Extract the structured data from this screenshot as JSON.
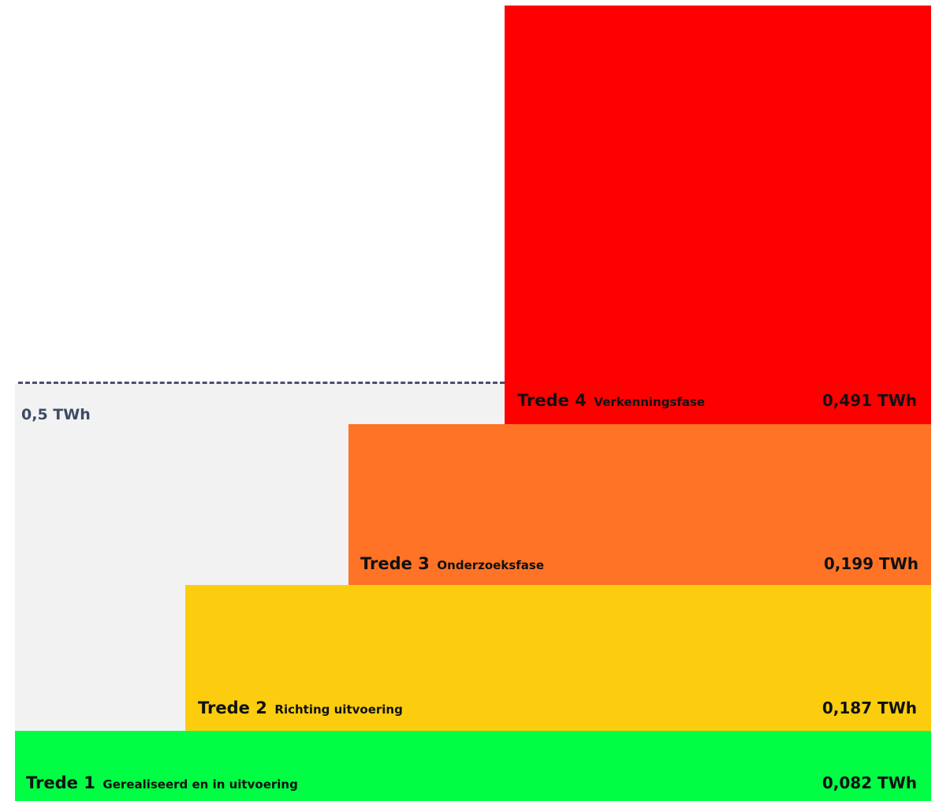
{
  "target": {
    "label": "0,5 TWh",
    "value_twh": 0.5,
    "area_color": "#f2f2f2",
    "line_color": "#4a5070"
  },
  "steps": [
    {
      "name": "Trede 1",
      "phase": "Gerealiseerd en in uitvoering",
      "value_label": "0,082 TWh",
      "value_twh": 0.082,
      "color": "#00ff44"
    },
    {
      "name": "Trede 2",
      "phase": "Richting uitvoering",
      "value_label": "0,187 TWh",
      "value_twh": 0.187,
      "color": "#fbcd0e"
    },
    {
      "name": "Trede 3",
      "phase": "Onderzoeksfase",
      "value_label": "0,199 TWh",
      "value_twh": 0.199,
      "color": "#ff7326"
    },
    {
      "name": "Trede 4",
      "phase": "Verkenningsfase",
      "value_label": "0,491 TWh",
      "value_twh": 0.491,
      "color": "#ff0000"
    }
  ]
}
